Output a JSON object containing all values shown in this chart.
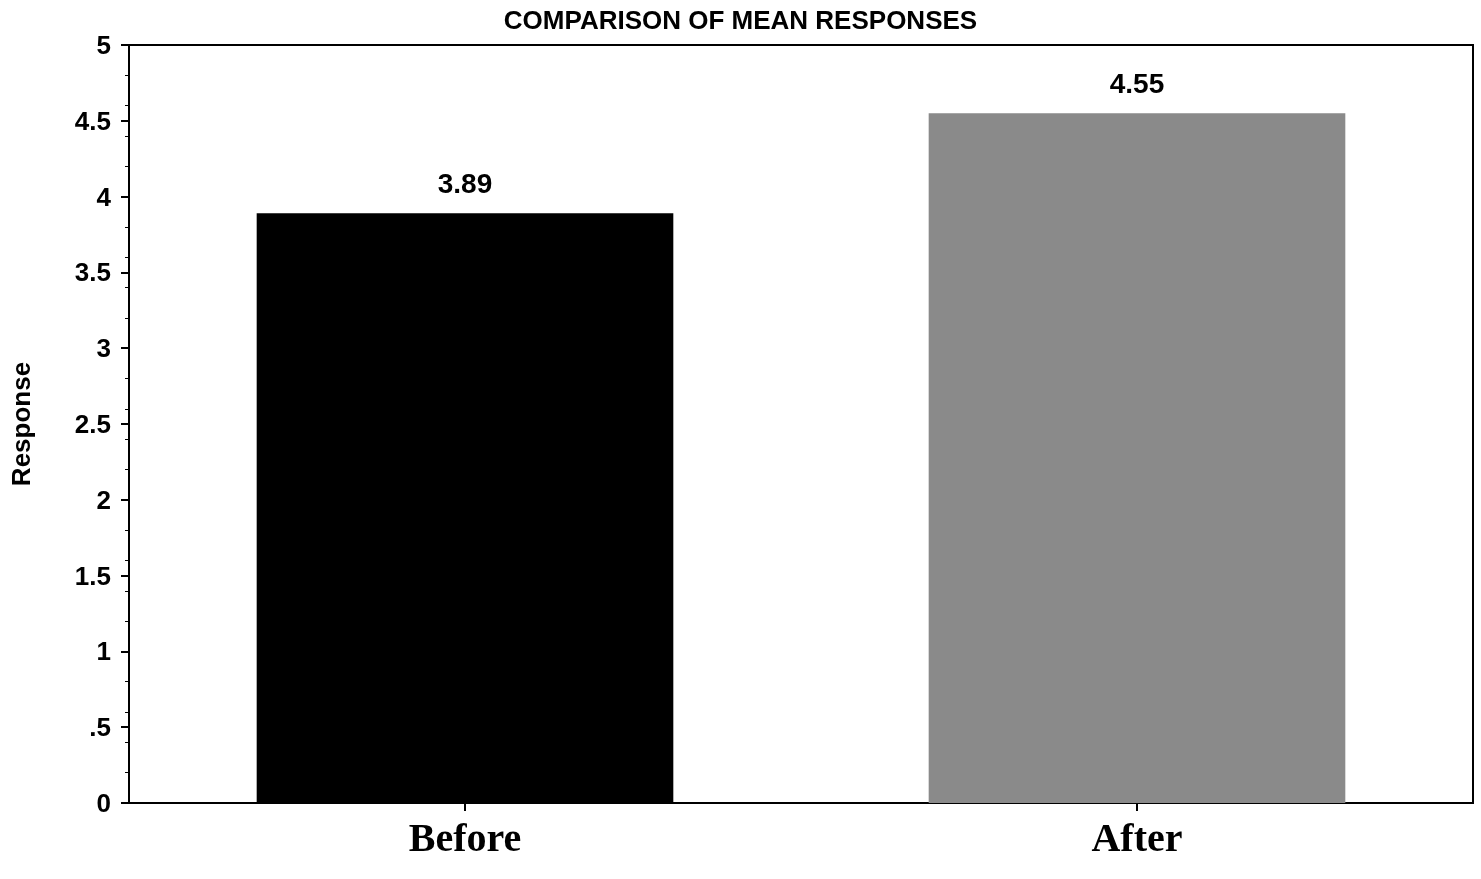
{
  "chart_data": {
    "type": "bar",
    "title": "COMPARISON OF MEAN RESPONSES",
    "ylabel": "Response",
    "categories": [
      "Before",
      "After"
    ],
    "values": [
      3.89,
      4.55
    ],
    "colors": [
      "#000000",
      "#8a8a8a"
    ],
    "ylim": [
      0,
      5
    ],
    "yticks": [
      0,
      {
        "value": 0.5,
        "label": ".5"
      },
      1,
      1.5,
      2,
      2.5,
      3,
      3.5,
      4,
      4.5,
      5
    ],
    "data_labels": true,
    "grid": false
  }
}
